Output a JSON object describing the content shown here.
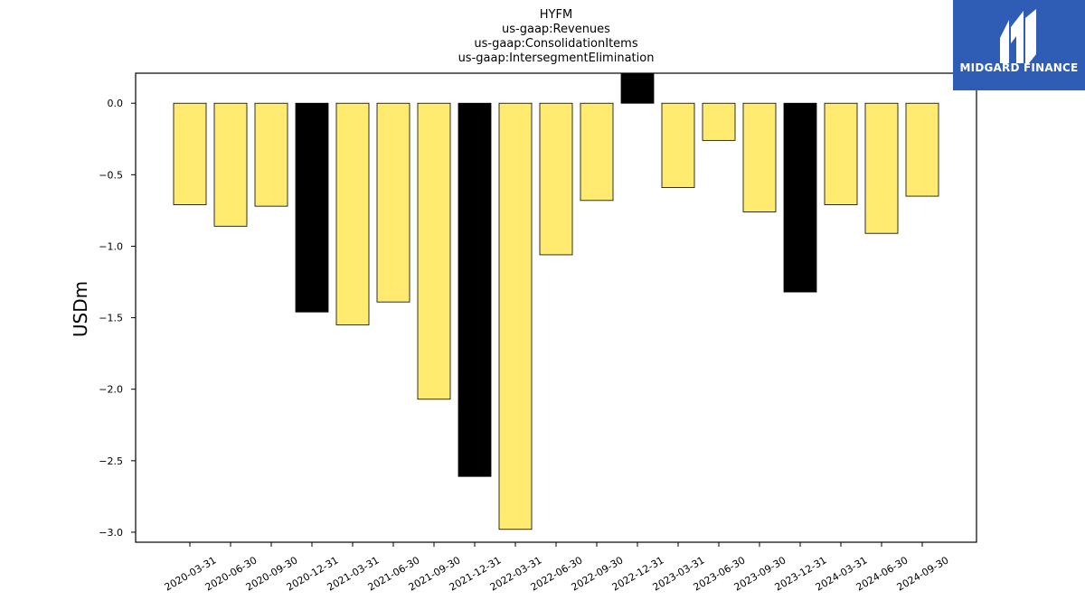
{
  "chart_data": {
    "type": "bar",
    "title_lines": [
      "HYFM",
      "us-gaap:Revenues",
      "us-gaap:ConsolidationItems",
      "us-gaap:IntersegmentElimination"
    ],
    "ylabel": "USDm",
    "xlabel": "",
    "categories": [
      "2020-03-31",
      "2020-06-30",
      "2020-09-30",
      "2020-12-31",
      "2021-03-31",
      "2021-06-30",
      "2021-09-30",
      "2021-12-31",
      "2022-03-31",
      "2022-06-30",
      "2022-09-30",
      "2022-12-31",
      "2023-03-31",
      "2023-06-30",
      "2023-09-30",
      "2023-12-31",
      "2024-03-31",
      "2024-06-30",
      "2024-09-30"
    ],
    "values": [
      -0.71,
      -0.86,
      -0.72,
      -1.46,
      -1.55,
      -1.39,
      -2.07,
      -2.61,
      -2.98,
      -1.06,
      -0.68,
      0.3,
      -0.59,
      -0.26,
      -0.76,
      -1.32,
      -0.71,
      -0.91,
      -0.65
    ],
    "highlight": [
      false,
      false,
      false,
      true,
      false,
      false,
      false,
      true,
      false,
      false,
      false,
      true,
      false,
      false,
      false,
      true,
      false,
      false,
      false
    ],
    "ylim": [
      -3.07,
      0.21
    ],
    "yticks": [
      0.0,
      -0.5,
      -1.0,
      -1.5,
      -2.0,
      -2.5,
      -3.0
    ],
    "ytick_labels": [
      "0.0",
      "−0.5",
      "−1.0",
      "−1.5",
      "−2.0",
      "−2.5",
      "−3.0"
    ],
    "grid": false,
    "colors": {
      "bar": "#ffeb70",
      "highlight": "#000000",
      "edge": "#000000"
    }
  },
  "logo": {
    "text": "MIDGARD FINANCE",
    "background": "#2f5db5"
  }
}
